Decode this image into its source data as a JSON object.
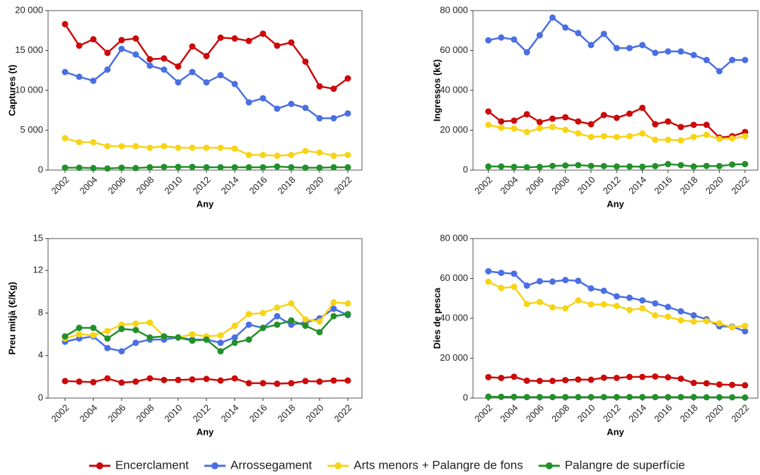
{
  "legend": [
    {
      "name": "Encerclament",
      "color": "#cc0a0a"
    },
    {
      "name": "Arrossegament",
      "color": "#4a6fe3"
    },
    {
      "name": "Arts menors + Palangre de fons",
      "color": "#f7d416"
    },
    {
      "name": "Palangre de superfície",
      "color": "#22902a"
    }
  ],
  "chart_data": [
    {
      "type": "line",
      "ylabel": "Captures (t)",
      "xlabel": "Any",
      "x": [
        2002,
        2003,
        2004,
        2005,
        2006,
        2007,
        2008,
        2009,
        2010,
        2011,
        2012,
        2013,
        2014,
        2015,
        2016,
        2017,
        2018,
        2019,
        2020,
        2021,
        2022
      ],
      "xlim": [
        2000.8,
        2023
      ],
      "xticks": [
        2002,
        2004,
        2006,
        2008,
        2010,
        2012,
        2014,
        2016,
        2018,
        2020,
        2022
      ],
      "ylim": [
        0,
        20000
      ],
      "yticks": [
        0,
        {
          "value": 5000,
          "label": "5 000"
        },
        {
          "value": 10000,
          "label": "10 000"
        },
        {
          "value": 15000,
          "label": "15 000"
        },
        {
          "value": 20000,
          "label": "20 000"
        }
      ],
      "series": [
        {
          "values": [
            18300,
            15600,
            16400,
            14700,
            16300,
            16500,
            13900,
            14000,
            13000,
            15500,
            14300,
            16600,
            16500,
            16200,
            17100,
            15600,
            16000,
            13600,
            10500,
            10200,
            11500
          ]
        },
        {
          "values": [
            12300,
            11700,
            11200,
            12600,
            15200,
            14500,
            13100,
            12600,
            11000,
            12300,
            11000,
            11900,
            10800,
            8500,
            9000,
            7700,
            8300,
            7800,
            6500,
            6500,
            7100
          ]
        },
        {
          "values": [
            4000,
            3500,
            3500,
            3000,
            3000,
            3000,
            2800,
            3000,
            2800,
            2800,
            2800,
            2800,
            2700,
            1900,
            1900,
            1800,
            1900,
            2400,
            2200,
            1800,
            1900
          ]
        },
        {
          "values": [
            300,
            300,
            250,
            200,
            300,
            250,
            350,
            400,
            400,
            400,
            350,
            350,
            350,
            350,
            350,
            450,
            350,
            300,
            300,
            350,
            350
          ]
        }
      ]
    },
    {
      "type": "line",
      "ylabel": "Ingressos (k€)",
      "xlabel": "Any",
      "x": [
        2002,
        2003,
        2004,
        2005,
        2006,
        2007,
        2008,
        2009,
        2010,
        2011,
        2012,
        2013,
        2014,
        2015,
        2016,
        2017,
        2018,
        2019,
        2020,
        2021,
        2022
      ],
      "xlim": [
        2000.8,
        2023
      ],
      "xticks": [
        2002,
        2004,
        2006,
        2008,
        2010,
        2012,
        2014,
        2016,
        2018,
        2020,
        2022
      ],
      "ylim": [
        0,
        80000
      ],
      "yticks": [
        0,
        {
          "value": 20000,
          "label": "20 000"
        },
        {
          "value": 40000,
          "label": "40 000"
        },
        {
          "value": 60000,
          "label": "60 000"
        },
        {
          "value": 80000,
          "label": "80 000"
        }
      ],
      "series": [
        {
          "values": [
            29400,
            24400,
            24800,
            28000,
            24100,
            25800,
            26500,
            24400,
            23000,
            27600,
            26200,
            28300,
            31200,
            23000,
            24400,
            21600,
            22700,
            22700,
            16300,
            17000,
            19100
          ]
        },
        {
          "values": [
            65100,
            66500,
            65500,
            59100,
            67600,
            76500,
            71500,
            68700,
            62700,
            68300,
            61200,
            61200,
            62700,
            58800,
            59500,
            59500,
            57700,
            55200,
            49600,
            55200,
            55200
          ]
        },
        {
          "values": [
            22700,
            21200,
            20900,
            19100,
            20900,
            21600,
            20200,
            18400,
            16600,
            17000,
            16600,
            17000,
            18400,
            15200,
            15200,
            14900,
            16600,
            17700,
            15600,
            15900,
            17000
          ]
        },
        {
          "values": [
            1800,
            1800,
            1600,
            1400,
            1600,
            2100,
            2300,
            2500,
            2100,
            2000,
            1800,
            1800,
            1700,
            2000,
            3000,
            2500,
            1800,
            2100,
            2000,
            2800,
            3000
          ]
        }
      ]
    },
    {
      "type": "line",
      "ylabel": "Preu mitjà (€/Kg)",
      "xlabel": "Any",
      "x": [
        2002,
        2003,
        2004,
        2005,
        2006,
        2007,
        2008,
        2009,
        2010,
        2011,
        2012,
        2013,
        2014,
        2015,
        2016,
        2017,
        2018,
        2019,
        2020,
        2021,
        2022
      ],
      "xlim": [
        2000.8,
        2023
      ],
      "xticks": [
        2002,
        2004,
        2006,
        2008,
        2010,
        2012,
        2014,
        2016,
        2018,
        2020,
        2022
      ],
      "ylim": [
        0,
        15
      ],
      "yticks": [
        0,
        4,
        8,
        12,
        15
      ],
      "series": [
        {
          "values": [
            1.6,
            1.55,
            1.5,
            1.85,
            1.45,
            1.55,
            1.85,
            1.7,
            1.7,
            1.75,
            1.8,
            1.65,
            1.85,
            1.4,
            1.4,
            1.35,
            1.4,
            1.6,
            1.55,
            1.65,
            1.65
          ]
        },
        {
          "values": [
            5.3,
            5.6,
            5.8,
            4.7,
            4.4,
            5.2,
            5.5,
            5.5,
            5.7,
            5.5,
            5.5,
            5.2,
            5.7,
            6.9,
            6.6,
            7.7,
            6.9,
            7.1,
            7.5,
            8.4,
            7.8
          ]
        },
        {
          "values": [
            5.6,
            6.0,
            5.9,
            6.3,
            6.9,
            7.0,
            7.1,
            5.8,
            5.7,
            6.0,
            5.8,
            5.9,
            6.8,
            7.9,
            8.0,
            8.5,
            8.9,
            7.4,
            7.2,
            9.0,
            8.9
          ]
        },
        {
          "values": [
            5.8,
            6.6,
            6.6,
            5.6,
            6.5,
            6.4,
            5.7,
            5.8,
            5.7,
            5.4,
            5.5,
            4.4,
            5.2,
            5.5,
            6.6,
            6.9,
            7.3,
            6.8,
            6.2,
            7.7,
            7.9
          ]
        }
      ]
    },
    {
      "type": "line",
      "ylabel": "Dies de pesca",
      "xlabel": "Any",
      "x": [
        2002,
        2003,
        2004,
        2005,
        2006,
        2007,
        2008,
        2009,
        2010,
        2011,
        2012,
        2013,
        2014,
        2015,
        2016,
        2017,
        2018,
        2019,
        2020,
        2021,
        2022
      ],
      "xlim": [
        2000.8,
        2023
      ],
      "xticks": [
        2002,
        2004,
        2006,
        2008,
        2010,
        2012,
        2014,
        2016,
        2018,
        2020,
        2022
      ],
      "ylim": [
        0,
        80000
      ],
      "yticks": [
        0,
        {
          "value": 20000,
          "label": "20 000"
        },
        {
          "value": 40000,
          "label": "40 000"
        },
        {
          "value": 60000,
          "label": "60 000"
        },
        {
          "value": 80000,
          "label": "80 000"
        }
      ],
      "series": [
        {
          "values": [
            10500,
            10100,
            10700,
            8700,
            8600,
            8600,
            9000,
            9300,
            9200,
            10200,
            10100,
            10600,
            10600,
            10800,
            10400,
            9700,
            7600,
            7400,
            6800,
            6600,
            6400
          ]
        },
        {
          "values": [
            63600,
            62800,
            62400,
            56400,
            58600,
            58400,
            59200,
            58800,
            55000,
            53800,
            51000,
            50300,
            49000,
            47500,
            45700,
            43500,
            41500,
            39500,
            36000,
            35800,
            33500
          ]
        },
        {
          "values": [
            58400,
            55200,
            55800,
            47200,
            48200,
            45500,
            45000,
            49000,
            47000,
            47000,
            46200,
            44200,
            45000,
            41500,
            40800,
            39000,
            38400,
            38600,
            37500,
            35500,
            36200
          ]
        },
        {
          "values": [
            700,
            600,
            600,
            500,
            500,
            500,
            500,
            500,
            500,
            500,
            500,
            500,
            500,
            500,
            500,
            500,
            500,
            400,
            400,
            400,
            300
          ]
        }
      ]
    }
  ]
}
